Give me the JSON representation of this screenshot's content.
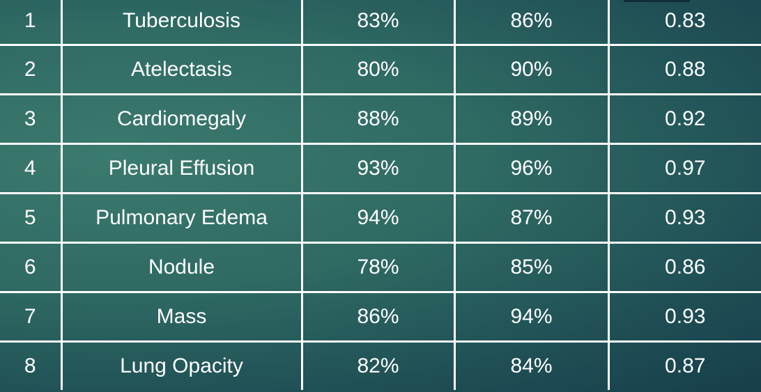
{
  "table": {
    "rows": [
      {
        "id": "1",
        "condition": "Tuberculosis",
        "col3": "83%",
        "col4": "86%",
        "col5": "0.83"
      },
      {
        "id": "2",
        "condition": "Atelectasis",
        "col3": "80%",
        "col4": "90%",
        "col5": "0.88"
      },
      {
        "id": "3",
        "condition": "Cardiomegaly",
        "col3": "88%",
        "col4": "89%",
        "col5": "0.92"
      },
      {
        "id": "4",
        "condition": "Pleural Effusion",
        "col3": "93%",
        "col4": "96%",
        "col5": "0.97"
      },
      {
        "id": "5",
        "condition": "Pulmonary Edema",
        "col3": "94%",
        "col4": "87%",
        "col5": "0.93"
      },
      {
        "id": "6",
        "condition": "Nodule",
        "col3": "78%",
        "col4": "85%",
        "col5": "0.86"
      },
      {
        "id": "7",
        "condition": "Mass",
        "col3": "86%",
        "col4": "94%",
        "col5": "0.93"
      },
      {
        "id": "8",
        "condition": "Lung Opacity",
        "col3": "82%",
        "col4": "84%",
        "col5": "0.87"
      }
    ]
  },
  "colors": {
    "background_light": "#3b7a6e",
    "background_dark": "#173e4b",
    "grid_line": "#ffffff",
    "text": "#ffffff"
  }
}
